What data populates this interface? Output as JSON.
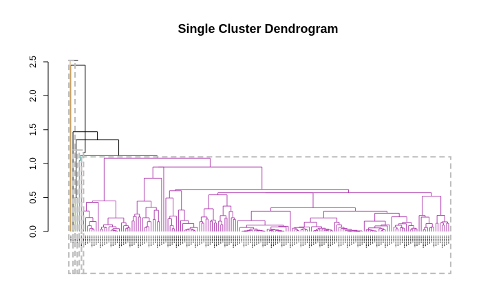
{
  "chart_data": {
    "type": "dendrogram",
    "title": "Single Cluster Dendrogram",
    "xlabel": "",
    "ylabel": "",
    "ylim": [
      0,
      2.5
    ],
    "yticks": [
      "0.0",
      "0.5",
      "1.0",
      "1.5",
      "2.0",
      "2.5"
    ],
    "ytick_values": [
      0,
      0.5,
      1.0,
      1.5,
      2.0,
      2.5
    ],
    "leaf_count": 180,
    "cut_height": 1.1,
    "branch_colors": {
      "root": "#000000",
      "cluster_1": "#c8a060",
      "cluster_2": "#80a040",
      "cluster_3": "#40a0a0",
      "cluster_main": "#b040b0"
    },
    "cluster_box_color": "#bebebe",
    "clusters": [
      {
        "name": "",
        "leaf_start": 0,
        "leaf_end": 1,
        "height": 2.52
      },
      {
        "name": "",
        "leaf_start": 2,
        "leaf_end": 3,
        "height": 1.2
      },
      {
        "name": "",
        "leaf_start": 4,
        "leaf_end": 5,
        "height": 1.2
      },
      {
        "name": "",
        "leaf_start": 6,
        "leaf_end": 179,
        "height": 1.1
      }
    ],
    "top_merges": [
      {
        "height": 2.52
      },
      {
        "height": 2.45
      },
      {
        "height": 1.47
      },
      {
        "height": 1.35
      },
      {
        "height": 1.16
      },
      {
        "height": 1.12
      }
    ],
    "main_cluster_merges": [
      {
        "height": 1.08
      },
      {
        "height": 0.95
      },
      {
        "height": 0.9
      },
      {
        "height": 0.77
      },
      {
        "height": 0.65
      },
      {
        "height": 0.62
      },
      {
        "height": 0.6
      },
      {
        "height": 0.57
      },
      {
        "height": 0.54
      },
      {
        "height": 0.52
      },
      {
        "height": 0.43
      },
      {
        "height": 0.4
      },
      {
        "height": 0.35
      },
      {
        "height": 0.3
      },
      {
        "height": 0.27
      },
      {
        "height": 0.2
      },
      {
        "height": 0.15
      },
      {
        "height": 0.1
      },
      {
        "height": 0.06
      }
    ]
  }
}
